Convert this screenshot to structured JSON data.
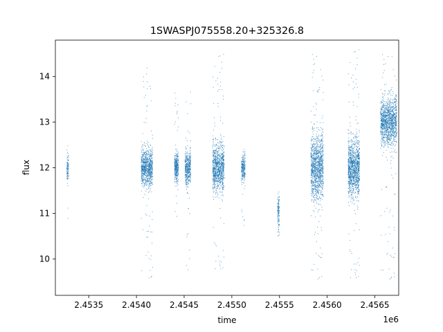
{
  "chart_data": {
    "type": "scatter",
    "title": "1SWASPJ075558.20+325326.8",
    "xlabel": "time",
    "ylabel": "flux",
    "x_offset_label": "1e6",
    "xlim": [
      2453150,
      2456750
    ],
    "ylim": [
      9.2,
      14.8
    ],
    "x_ticks": [
      2453500,
      2454000,
      2454500,
      2455000,
      2455500,
      2456000,
      2456500
    ],
    "x_tick_labels": [
      "2.4535",
      "2.4540",
      "2.4545",
      "2.4550",
      "2.4555",
      "2.4560",
      "2.4565"
    ],
    "y_ticks": [
      10,
      11,
      12,
      13,
      14
    ],
    "y_tick_labels": [
      "10",
      "11",
      "12",
      "13",
      "14"
    ],
    "grid": false,
    "marker_color": "#1f77b4",
    "clusters": [
      {
        "x_start": 2453270,
        "x_end": 2453290,
        "y_center": 12.0,
        "y_spread": 0.15,
        "y_min": 10.6,
        "y_max": 12.6,
        "count": 100
      },
      {
        "x_start": 2454050,
        "x_end": 2454170,
        "y_center": 12.0,
        "y_spread": 0.2,
        "y_min": 9.5,
        "y_max": 14.2,
        "count": 900
      },
      {
        "x_start": 2454400,
        "x_end": 2454440,
        "y_center": 12.0,
        "y_spread": 0.15,
        "y_min": 10.9,
        "y_max": 13.7,
        "count": 350
      },
      {
        "x_start": 2454510,
        "x_end": 2454570,
        "y_center": 12.0,
        "y_spread": 0.18,
        "y_min": 9.5,
        "y_max": 14.3,
        "count": 450
      },
      {
        "x_start": 2454800,
        "x_end": 2454920,
        "y_center": 12.0,
        "y_spread": 0.25,
        "y_min": 9.7,
        "y_max": 14.5,
        "count": 1000
      },
      {
        "x_start": 2455100,
        "x_end": 2455140,
        "y_center": 12.0,
        "y_spread": 0.15,
        "y_min": 10.7,
        "y_max": 12.6,
        "count": 250
      },
      {
        "x_start": 2455480,
        "x_end": 2455500,
        "y_center": 11.0,
        "y_spread": 0.2,
        "y_min": 10.5,
        "y_max": 11.5,
        "count": 120
      },
      {
        "x_start": 2455830,
        "x_end": 2455960,
        "y_center": 12.0,
        "y_spread": 0.35,
        "y_min": 9.5,
        "y_max": 14.6,
        "count": 1200
      },
      {
        "x_start": 2456220,
        "x_end": 2456340,
        "y_center": 12.0,
        "y_spread": 0.3,
        "y_min": 9.5,
        "y_max": 14.6,
        "count": 1200
      },
      {
        "x_start": 2456560,
        "x_end": 2456730,
        "y_center": 13.0,
        "y_spread": 0.25,
        "y_min": 9.5,
        "y_max": 14.6,
        "count": 1300
      }
    ]
  }
}
